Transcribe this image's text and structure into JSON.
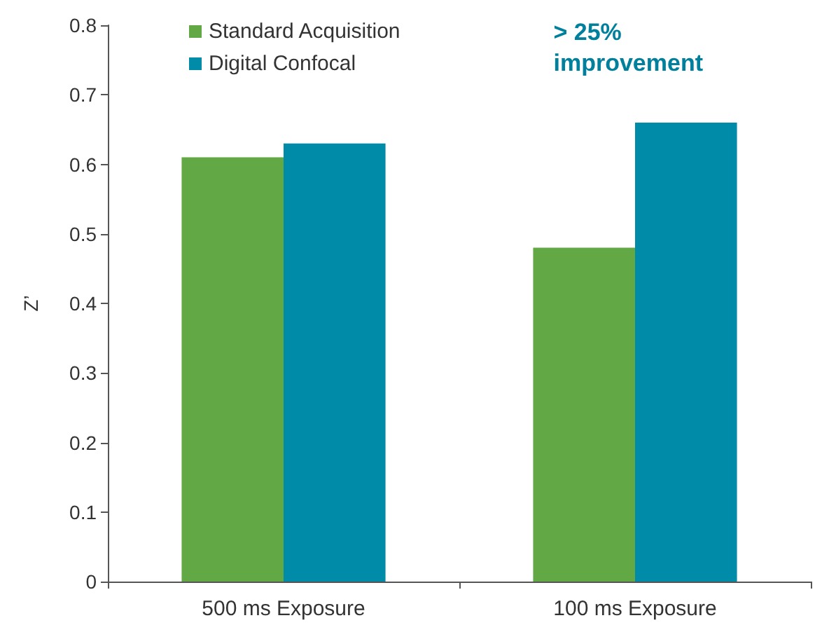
{
  "chart_data": {
    "type": "bar",
    "ylabel": "Z’",
    "categories": [
      "500 ms Exposure",
      "100 ms Exposure"
    ],
    "series": [
      {
        "name": "Standard Acquisition",
        "color": "#62a945",
        "values": [
          0.61,
          0.48
        ]
      },
      {
        "name": "Digital Confocal",
        "color": "#008ba8",
        "values": [
          0.63,
          0.66
        ]
      }
    ],
    "ylim": [
      0,
      0.8
    ],
    "yticks": [
      0,
      0.1,
      0.2,
      0.3,
      0.4,
      0.5,
      0.6,
      0.7,
      0.8
    ],
    "grid": false,
    "legend": "top left",
    "annotations": [
      "> 25%\nimprovement"
    ]
  }
}
